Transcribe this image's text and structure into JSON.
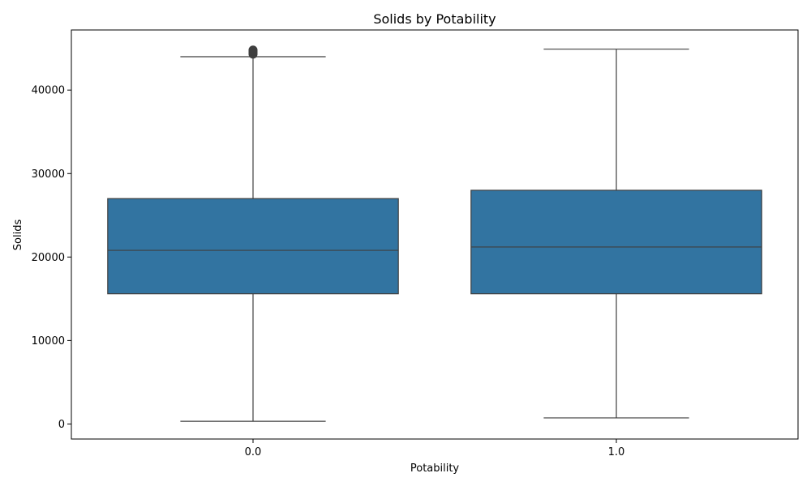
{
  "chart_data": {
    "type": "box",
    "title": "Solids by Potability",
    "xlabel": "Potability",
    "ylabel": "Solids",
    "categories": [
      "0.0",
      "1.0"
    ],
    "y_ticks": [
      0,
      10000,
      20000,
      30000,
      40000
    ],
    "y_tick_labels": [
      "0",
      "10000",
      "20000",
      "30000",
      "40000"
    ],
    "ylim": [
      -1800,
      47200
    ],
    "grid": false,
    "box_color": "#3274a1",
    "line_color": "#3f3f3f",
    "boxes": [
      {
        "category": "0.0",
        "whisker_low": 320,
        "q1": 15600,
        "median": 20800,
        "q3": 27000,
        "whisker_high": 44000,
        "outliers": [
          44300,
          44450,
          44550,
          44650,
          44700,
          44800
        ]
      },
      {
        "category": "1.0",
        "whisker_low": 730,
        "q1": 15600,
        "median": 21200,
        "q3": 28000,
        "whisker_high": 44900,
        "outliers": []
      }
    ]
  }
}
